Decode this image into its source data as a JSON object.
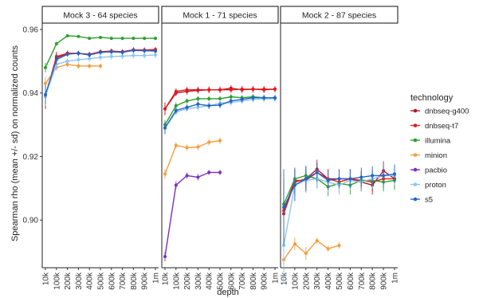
{
  "chart_data": {
    "type": "line",
    "ylabel": "Spearman rho (mean +/- sd) on normalized counts",
    "xlabel": "depth",
    "x_categories": [
      "10k",
      "100k",
      "200k",
      "300k",
      "400k",
      "500k",
      "600k",
      "700k",
      "800k",
      "900k",
      "1m"
    ],
    "ylim": [
      0.885,
      0.962
    ],
    "y_ticks": [
      0.9,
      0.92,
      0.94,
      0.96
    ],
    "y_tick_labels": [
      "0.90",
      "0.92",
      "0.94",
      "0.96"
    ],
    "grid": false,
    "legend": {
      "title": "technology",
      "placement": "right",
      "entries": [
        "dnbseq-g400",
        "dnbseq-t7",
        "illumina",
        "minion",
        "pacbio",
        "proton",
        "s5"
      ]
    },
    "colors": {
      "dnbseq-g400": "#b2182b",
      "dnbseq-t7": "#e41a1c",
      "illumina": "#2ca02c",
      "minion": "#f59d3d",
      "pacbio": "#7b2fbe",
      "proton": "#8ec6f0",
      "s5": "#2166c4"
    },
    "panels": [
      {
        "title": "Mock 3 - 64 species",
        "series": [
          {
            "name": "dnbseq-g400",
            "values": [
              0.939,
              0.951,
              0.9525,
              0.9525,
              0.952,
              0.9528,
              0.953,
              0.9528,
              0.9535,
              0.9535,
              0.9535
            ],
            "sd": [
              0.004,
              0.0015,
              0.0008,
              0.0008,
              0.0008,
              0.0008,
              0.0008,
              0.0008,
              0.0008,
              0.0008,
              0.0008
            ]
          },
          {
            "name": "dnbseq-t7",
            "values": [
              0.939,
              0.9515,
              0.9525,
              0.9525,
              0.9522,
              0.953,
              0.9532,
              0.953,
              0.9536,
              0.9535,
              0.9537
            ],
            "sd": [
              0.004,
              0.0015,
              0.0008,
              0.0008,
              0.0008,
              0.0008,
              0.0008,
              0.0008,
              0.0008,
              0.0008,
              0.0008
            ]
          },
          {
            "name": "illumina",
            "values": [
              0.948,
              0.9555,
              0.958,
              0.9578,
              0.9572,
              0.9575,
              0.9572,
              0.9572,
              0.9572,
              0.9572,
              0.9572
            ],
            "sd": [
              0.0015,
              0.0006,
              0.0005,
              0.0005,
              0.0005,
              0.0005,
              0.0005,
              0.0005,
              0.0005,
              0.0005,
              0.0005
            ]
          },
          {
            "name": "minion",
            "values": [
              0.943,
              0.948,
              0.949,
              0.9485,
              0.9485,
              0.9485
            ],
            "sd": [
              0.002,
              0.001,
              0.0008,
              0.0008,
              0.0008,
              0.0008
            ]
          },
          {
            "name": "proton",
            "values": [
              0.939,
              0.949,
              0.95,
              0.9505,
              0.9508,
              0.9512,
              0.9515,
              0.9516,
              0.9518,
              0.9518,
              0.952
            ],
            "sd": [
              0.003,
              0.0015,
              0.001,
              0.001,
              0.001,
              0.001,
              0.001,
              0.001,
              0.001,
              0.001,
              0.001
            ]
          },
          {
            "name": "s5",
            "values": [
              0.9395,
              0.9505,
              0.9522,
              0.9525,
              0.952,
              0.9528,
              0.953,
              0.9528,
              0.9534,
              0.9533,
              0.9532
            ],
            "sd": [
              0.003,
              0.0015,
              0.0008,
              0.0008,
              0.0008,
              0.0008,
              0.0008,
              0.0008,
              0.0008,
              0.0008,
              0.0008
            ]
          }
        ]
      },
      {
        "title": "Mock 1 - 71 species",
        "series": [
          {
            "name": "dnbseq-g400",
            "values": [
              0.935,
              0.94,
              0.9405,
              0.9408,
              0.941,
              0.941,
              0.9415,
              0.941,
              0.9412,
              0.941,
              0.9412
            ],
            "sd": [
              0.002,
              0.001,
              0.001,
              0.001,
              0.001,
              0.001,
              0.001,
              0.001,
              0.001,
              0.001,
              0.001
            ]
          },
          {
            "name": "dnbseq-t7",
            "values": [
              0.935,
              0.9405,
              0.941,
              0.941,
              0.941,
              0.941,
              0.941,
              0.9412,
              0.9412,
              0.9412,
              0.9412
            ],
            "sd": [
              0.002,
              0.001,
              0.001,
              0.001,
              0.001,
              0.001,
              0.001,
              0.001,
              0.001,
              0.001,
              0.001
            ]
          },
          {
            "name": "illumina",
            "values": [
              0.93,
              0.936,
              0.9375,
              0.9382,
              0.9382,
              0.9382,
              0.9388,
              0.9385,
              0.9388,
              0.9385,
              0.9385
            ],
            "sd": [
              0.0015,
              0.001,
              0.0008,
              0.0008,
              0.0008,
              0.0008,
              0.0008,
              0.0008,
              0.0008,
              0.0008,
              0.0008
            ]
          },
          {
            "name": "minion",
            "values": [
              0.9145,
              0.9235,
              0.9228,
              0.923,
              0.9245,
              0.925
            ],
            "sd": [
              0.0015,
              0.001,
              0.001,
              0.001,
              0.001,
              0.001
            ]
          },
          {
            "name": "pacbio",
            "values": [
              0.8885,
              0.911,
              0.914,
              0.9135,
              0.915,
              0.915
            ],
            "sd": [
              0.0015,
              0.0012,
              0.001,
              0.001,
              0.0008,
              0.0008
            ]
          },
          {
            "name": "proton",
            "values": [
              0.929,
              0.934,
              0.935,
              0.9355,
              0.936,
              0.9368,
              0.937,
              0.9375,
              0.938,
              0.9382,
              0.9382
            ],
            "sd": [
              0.002,
              0.001,
              0.001,
              0.001,
              0.001,
              0.001,
              0.001,
              0.001,
              0.001,
              0.001,
              0.001
            ]
          },
          {
            "name": "s5",
            "values": [
              0.929,
              0.9345,
              0.9355,
              0.9365,
              0.936,
              0.9362,
              0.9375,
              0.938,
              0.9385,
              0.9385,
              0.9385
            ],
            "sd": [
              0.002,
              0.001,
              0.001,
              0.001,
              0.001,
              0.001,
              0.001,
              0.001,
              0.001,
              0.001,
              0.001
            ]
          }
        ]
      },
      {
        "title": "Mock 2 - 87 species",
        "series": [
          {
            "name": "dnbseq-g400",
            "values": [
              0.902,
              0.912,
              0.913,
              0.916,
              0.913,
              0.913,
              0.913,
              0.912,
              0.911,
              0.9155,
              0.913
            ],
            "sd": [
              0.01,
              0.004,
              0.003,
              0.003,
              0.003,
              0.003,
              0.003,
              0.003,
              0.003,
              0.003,
              0.003
            ]
          },
          {
            "name": "dnbseq-t7",
            "values": [
              0.903,
              0.9125,
              0.9125,
              0.915,
              0.913,
              0.912,
              0.913,
              0.9125,
              0.912,
              0.913,
              0.913
            ],
            "sd": [
              0.009,
              0.004,
              0.003,
              0.003,
              0.003,
              0.003,
              0.003,
              0.003,
              0.003,
              0.003,
              0.003
            ]
          },
          {
            "name": "illumina",
            "values": [
              0.905,
              0.913,
              0.914,
              0.913,
              0.9105,
              0.9115,
              0.911,
              0.9125,
              0.9125,
              0.912,
              0.9125
            ],
            "sd": [
              0.008,
              0.003,
              0.003,
              0.003,
              0.003,
              0.003,
              0.003,
              0.003,
              0.003,
              0.003,
              0.003
            ]
          },
          {
            "name": "minion",
            "values": [
              0.8875,
              0.8925,
              0.8895,
              0.8935,
              0.891,
              0.892
            ],
            "sd": [
              0.001,
              0.002,
              0.002,
              0.001,
              0.001,
              0.001
            ]
          },
          {
            "name": "proton",
            "values": [
              0.892,
              0.911,
              0.9125,
              0.913,
              0.912,
              0.911,
              0.9125,
              0.912,
              0.913,
              0.914,
              0.914
            ],
            "sd": [
              0.012,
              0.005,
              0.004,
              0.003,
              0.003,
              0.003,
              0.003,
              0.003,
              0.003,
              0.003,
              0.003
            ]
          },
          {
            "name": "s5",
            "values": [
              0.904,
              0.911,
              0.913,
              0.915,
              0.9125,
              0.913,
              0.913,
              0.9135,
              0.914,
              0.914,
              0.9145
            ],
            "sd": [
              0.012,
              0.005,
              0.004,
              0.003,
              0.003,
              0.003,
              0.003,
              0.003,
              0.003,
              0.003,
              0.003
            ]
          }
        ]
      }
    ]
  }
}
